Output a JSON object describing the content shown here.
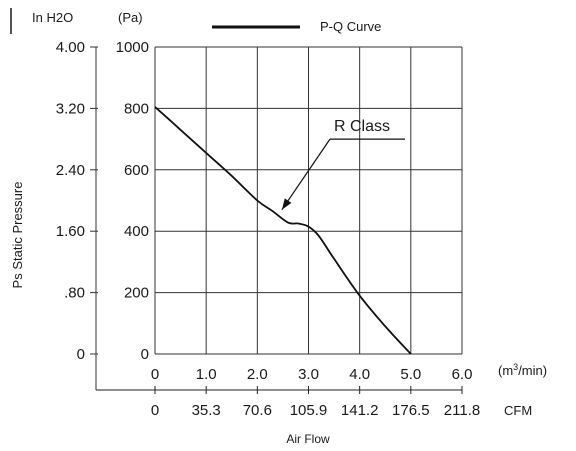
{
  "chart_data": {
    "type": "line",
    "title": "",
    "legend": {
      "label": "P-Q Curve",
      "position": "top-center"
    },
    "units": {
      "pressure_inh2o": "In H2O",
      "pressure_pa": "(Pa)",
      "flow_m3min": "(m3/min)",
      "flow_cfm": "CFM"
    },
    "ylabel": "Ps Static Pressure",
    "xlabel": "Air Flow",
    "xlim": [
      0,
      6
    ],
    "ylim": [
      0,
      1000
    ],
    "grid": true,
    "x_ticks": [
      "0",
      "1.0",
      "2.0",
      "3.0",
      "4.0",
      "5.0",
      "6.0"
    ],
    "y_ticks_pa": [
      "0",
      "200",
      "400",
      "600",
      "800",
      "1000"
    ],
    "y_ticks_inh2o": [
      "0",
      ".80",
      "1.60",
      "2.40",
      "3.20",
      "4.00"
    ],
    "cfm_ticks": [
      "0",
      "35.3",
      "70.6",
      "105.9",
      "141.2",
      "176.5",
      "211.8"
    ],
    "annotation": {
      "text": "R Class",
      "x": 3.42,
      "y": 700,
      "arrow_to": [
        2.48,
        470
      ]
    },
    "series": [
      {
        "x": [
          0,
          0.5,
          1.0,
          1.5,
          2.0,
          2.3,
          2.6,
          2.8,
          3.0,
          3.2,
          3.5,
          4.0,
          4.5,
          5.0
        ],
        "y": [
          805,
          730,
          655,
          580,
          500,
          465,
          428,
          425,
          415,
          385,
          310,
          190,
          90,
          0
        ]
      }
    ]
  }
}
